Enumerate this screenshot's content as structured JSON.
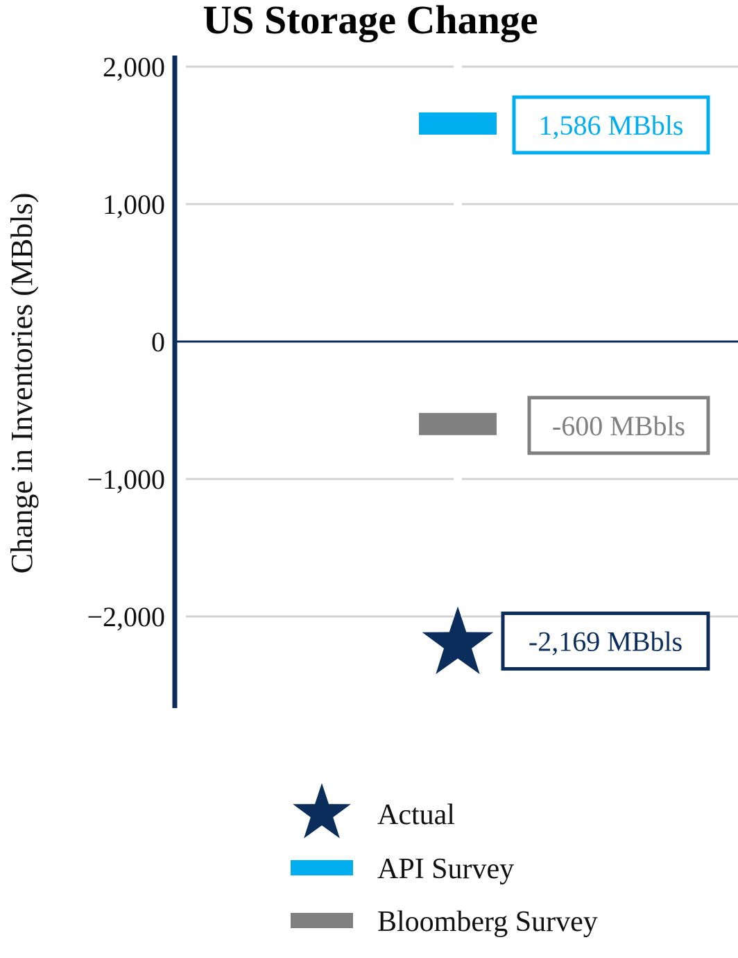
{
  "chart_data": {
    "type": "scatter",
    "title": "US Storage Change",
    "xlabel": "",
    "ylabel": "Change in Inventories (MBbls)",
    "ylim": [
      -2640,
      2060
    ],
    "yticks": [
      2000,
      1000,
      0,
      -1000,
      -2000
    ],
    "ytick_labels": [
      "2,000",
      "1,000",
      "0",
      "−1,000",
      "−2,000"
    ],
    "grid": true,
    "legend_position": "bottom-center",
    "series": [
      {
        "name": "Actual",
        "marker": "star",
        "color": "#0b2d5c",
        "value": -2169,
        "label": "-2,169 MBbls"
      },
      {
        "name": "API Survey",
        "marker": "bar",
        "color": "#00aeef",
        "value": 1586,
        "label": "1,586 MBbls"
      },
      {
        "name": "Bloomberg Survey",
        "marker": "bar",
        "color": "#808080",
        "value": -600,
        "label": "-600 MBbls"
      }
    ],
    "colors": {
      "axis": "#0b2d5c",
      "grid": "#d3d3d3"
    }
  }
}
